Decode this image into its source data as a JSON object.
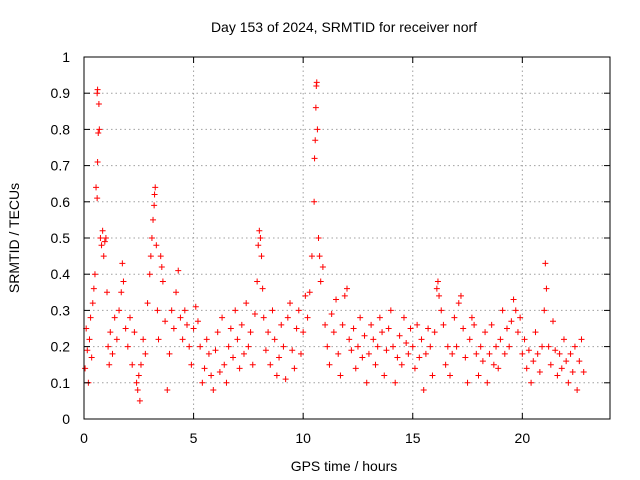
{
  "chart_data": {
    "type": "scatter",
    "title": "Day 153 of 2024, SRMTID for receiver norf",
    "xlabel": "GPS time / hours",
    "ylabel": "SRMTID / TECUs",
    "xlim": [
      0,
      24
    ],
    "ylim": [
      0,
      1
    ],
    "xticks": [
      0,
      5,
      10,
      15,
      20
    ],
    "xtick_labels": [
      "0",
      "5",
      "10",
      "15",
      "20"
    ],
    "yticks": [
      0,
      0.1,
      0.2,
      0.3,
      0.4,
      0.5,
      0.6,
      0.7,
      0.8,
      0.9,
      1
    ],
    "ytick_labels": [
      "0",
      "0.1",
      "0.2",
      "0.3",
      "0.4",
      "0.5",
      "0.6",
      "0.7",
      "0.8",
      "0.9",
      "1"
    ],
    "grid": true,
    "marker": "plus",
    "marker_color": "#ff0000",
    "x_data_range": [
      0,
      22.8
    ],
    "series": [
      {
        "name": "SRMTID",
        "points": [
          [
            0.05,
            0.14
          ],
          [
            0.1,
            0.25
          ],
          [
            0.15,
            0.19
          ],
          [
            0.2,
            0.1
          ],
          [
            0.25,
            0.22
          ],
          [
            0.3,
            0.28
          ],
          [
            0.35,
            0.17
          ],
          [
            0.4,
            0.32
          ],
          [
            0.45,
            0.36
          ],
          [
            0.5,
            0.4
          ],
          [
            0.55,
            0.64
          ],
          [
            0.6,
            0.61
          ],
          [
            0.62,
            0.71
          ],
          [
            0.65,
            0.79
          ],
          [
            0.68,
            0.87
          ],
          [
            0.6,
            0.9
          ],
          [
            0.62,
            0.91
          ],
          [
            0.7,
            0.8
          ],
          [
            0.75,
            0.5
          ],
          [
            0.8,
            0.48
          ],
          [
            0.85,
            0.52
          ],
          [
            0.9,
            0.45
          ],
          [
            0.95,
            0.49
          ],
          [
            1.0,
            0.5
          ],
          [
            1.05,
            0.35
          ],
          [
            1.1,
            0.2
          ],
          [
            1.15,
            0.15
          ],
          [
            1.2,
            0.24
          ],
          [
            1.3,
            0.18
          ],
          [
            1.4,
            0.28
          ],
          [
            1.5,
            0.22
          ],
          [
            1.6,
            0.3
          ],
          [
            1.7,
            0.35
          ],
          [
            1.75,
            0.43
          ],
          [
            1.8,
            0.38
          ],
          [
            1.9,
            0.25
          ],
          [
            2.0,
            0.2
          ],
          [
            2.1,
            0.28
          ],
          [
            2.2,
            0.15
          ],
          [
            2.3,
            0.24
          ],
          [
            2.4,
            0.1
          ],
          [
            2.45,
            0.08
          ],
          [
            2.5,
            0.12
          ],
          [
            2.55,
            0.05
          ],
          [
            2.6,
            0.15
          ],
          [
            2.7,
            0.22
          ],
          [
            2.8,
            0.18
          ],
          [
            2.9,
            0.32
          ],
          [
            3.0,
            0.4
          ],
          [
            3.05,
            0.45
          ],
          [
            3.1,
            0.5
          ],
          [
            3.15,
            0.55
          ],
          [
            3.2,
            0.59
          ],
          [
            3.22,
            0.62
          ],
          [
            3.25,
            0.64
          ],
          [
            3.3,
            0.48
          ],
          [
            3.35,
            0.3
          ],
          [
            3.4,
            0.22
          ],
          [
            3.5,
            0.45
          ],
          [
            3.55,
            0.42
          ],
          [
            3.6,
            0.38
          ],
          [
            3.7,
            0.27
          ],
          [
            3.8,
            0.08
          ],
          [
            3.9,
            0.18
          ],
          [
            4.0,
            0.3
          ],
          [
            4.1,
            0.25
          ],
          [
            4.2,
            0.35
          ],
          [
            4.3,
            0.41
          ],
          [
            4.4,
            0.28
          ],
          [
            4.5,
            0.22
          ],
          [
            4.6,
            0.3
          ],
          [
            4.7,
            0.26
          ],
          [
            4.8,
            0.2
          ],
          [
            4.9,
            0.15
          ],
          [
            5.0,
            0.25
          ],
          [
            5.1,
            0.31
          ],
          [
            5.2,
            0.27
          ],
          [
            5.3,
            0.2
          ],
          [
            5.4,
            0.1
          ],
          [
            5.5,
            0.14
          ],
          [
            5.6,
            0.22
          ],
          [
            5.7,
            0.18
          ],
          [
            5.8,
            0.12
          ],
          [
            5.9,
            0.08
          ],
          [
            6.0,
            0.19
          ],
          [
            6.1,
            0.24
          ],
          [
            6.2,
            0.13
          ],
          [
            6.3,
            0.28
          ],
          [
            6.4,
            0.15
          ],
          [
            6.5,
            0.1
          ],
          [
            6.6,
            0.2
          ],
          [
            6.7,
            0.25
          ],
          [
            6.8,
            0.17
          ],
          [
            6.9,
            0.3
          ],
          [
            7.0,
            0.22
          ],
          [
            7.1,
            0.14
          ],
          [
            7.2,
            0.26
          ],
          [
            7.3,
            0.18
          ],
          [
            7.4,
            0.32
          ],
          [
            7.5,
            0.2
          ],
          [
            7.6,
            0.24
          ],
          [
            7.7,
            0.15
          ],
          [
            7.8,
            0.29
          ],
          [
            7.9,
            0.38
          ],
          [
            7.95,
            0.48
          ],
          [
            8.0,
            0.52
          ],
          [
            8.05,
            0.5
          ],
          [
            8.1,
            0.45
          ],
          [
            8.15,
            0.36
          ],
          [
            8.2,
            0.28
          ],
          [
            8.3,
            0.19
          ],
          [
            8.4,
            0.24
          ],
          [
            8.5,
            0.15
          ],
          [
            8.6,
            0.3
          ],
          [
            8.7,
            0.22
          ],
          [
            8.8,
            0.12
          ],
          [
            8.9,
            0.17
          ],
          [
            9.0,
            0.26
          ],
          [
            9.1,
            0.2
          ],
          [
            9.2,
            0.11
          ],
          [
            9.3,
            0.28
          ],
          [
            9.4,
            0.32
          ],
          [
            9.5,
            0.19
          ],
          [
            9.6,
            0.14
          ],
          [
            9.7,
            0.25
          ],
          [
            9.8,
            0.3
          ],
          [
            9.9,
            0.18
          ],
          [
            10.0,
            0.24
          ],
          [
            10.1,
            0.34
          ],
          [
            10.2,
            0.28
          ],
          [
            10.3,
            0.35
          ],
          [
            10.4,
            0.45
          ],
          [
            10.5,
            0.6
          ],
          [
            10.52,
            0.72
          ],
          [
            10.55,
            0.77
          ],
          [
            10.58,
            0.86
          ],
          [
            10.6,
            0.92
          ],
          [
            10.62,
            0.93
          ],
          [
            10.65,
            0.8
          ],
          [
            10.7,
            0.5
          ],
          [
            10.75,
            0.45
          ],
          [
            10.8,
            0.38
          ],
          [
            10.9,
            0.42
          ],
          [
            11.0,
            0.26
          ],
          [
            11.1,
            0.2
          ],
          [
            11.2,
            0.15
          ],
          [
            11.3,
            0.29
          ],
          [
            11.4,
            0.24
          ],
          [
            11.5,
            0.33
          ],
          [
            11.6,
            0.18
          ],
          [
            11.7,
            0.12
          ],
          [
            11.8,
            0.26
          ],
          [
            11.9,
            0.34
          ],
          [
            12.0,
            0.36
          ],
          [
            12.1,
            0.22
          ],
          [
            12.2,
            0.19
          ],
          [
            12.3,
            0.25
          ],
          [
            12.4,
            0.14
          ],
          [
            12.5,
            0.2
          ],
          [
            12.6,
            0.28
          ],
          [
            12.7,
            0.17
          ],
          [
            12.8,
            0.23
          ],
          [
            12.9,
            0.1
          ],
          [
            13.0,
            0.18
          ],
          [
            13.1,
            0.26
          ],
          [
            13.2,
            0.22
          ],
          [
            13.3,
            0.15
          ],
          [
            13.4,
            0.2
          ],
          [
            13.5,
            0.28
          ],
          [
            13.6,
            0.24
          ],
          [
            13.7,
            0.12
          ],
          [
            13.8,
            0.19
          ],
          [
            13.9,
            0.25
          ],
          [
            14.0,
            0.3
          ],
          [
            14.1,
            0.2
          ],
          [
            14.2,
            0.1
          ],
          [
            14.3,
            0.17
          ],
          [
            14.4,
            0.23
          ],
          [
            14.5,
            0.15
          ],
          [
            14.6,
            0.28
          ],
          [
            14.7,
            0.21
          ],
          [
            14.8,
            0.18
          ],
          [
            14.9,
            0.25
          ],
          [
            15.0,
            0.2
          ],
          [
            15.1,
            0.14
          ],
          [
            15.2,
            0.26
          ],
          [
            15.3,
            0.17
          ],
          [
            15.4,
            0.22
          ],
          [
            15.5,
            0.08
          ],
          [
            15.6,
            0.18
          ],
          [
            15.7,
            0.25
          ],
          [
            15.8,
            0.2
          ],
          [
            15.9,
            0.12
          ],
          [
            16.0,
            0.24
          ],
          [
            16.1,
            0.36
          ],
          [
            16.15,
            0.38
          ],
          [
            16.2,
            0.34
          ],
          [
            16.3,
            0.3
          ],
          [
            16.4,
            0.26
          ],
          [
            16.5,
            0.15
          ],
          [
            16.6,
            0.2
          ],
          [
            16.7,
            0.12
          ],
          [
            16.8,
            0.18
          ],
          [
            16.9,
            0.28
          ],
          [
            17.0,
            0.2
          ],
          [
            17.1,
            0.32
          ],
          [
            17.2,
            0.34
          ],
          [
            17.3,
            0.25
          ],
          [
            17.4,
            0.17
          ],
          [
            17.5,
            0.1
          ],
          [
            17.6,
            0.22
          ],
          [
            17.7,
            0.28
          ],
          [
            17.8,
            0.26
          ],
          [
            17.9,
            0.18
          ],
          [
            18.0,
            0.12
          ],
          [
            18.1,
            0.2
          ],
          [
            18.2,
            0.16
          ],
          [
            18.3,
            0.24
          ],
          [
            18.4,
            0.1
          ],
          [
            18.5,
            0.18
          ],
          [
            18.6,
            0.26
          ],
          [
            18.7,
            0.15
          ],
          [
            18.8,
            0.2
          ],
          [
            18.9,
            0.14
          ],
          [
            19.0,
            0.22
          ],
          [
            19.1,
            0.3
          ],
          [
            19.2,
            0.18
          ],
          [
            19.3,
            0.25
          ],
          [
            19.4,
            0.2
          ],
          [
            19.5,
            0.27
          ],
          [
            19.6,
            0.33
          ],
          [
            19.7,
            0.3
          ],
          [
            19.8,
            0.24
          ],
          [
            19.9,
            0.28
          ],
          [
            20.0,
            0.18
          ],
          [
            20.1,
            0.22
          ],
          [
            20.2,
            0.14
          ],
          [
            20.3,
            0.19
          ],
          [
            20.4,
            0.1
          ],
          [
            20.5,
            0.16
          ],
          [
            20.6,
            0.24
          ],
          [
            20.7,
            0.18
          ],
          [
            20.8,
            0.13
          ],
          [
            20.9,
            0.2
          ],
          [
            21.0,
            0.3
          ],
          [
            21.05,
            0.43
          ],
          [
            21.1,
            0.36
          ],
          [
            21.2,
            0.2
          ],
          [
            21.3,
            0.15
          ],
          [
            21.4,
            0.27
          ],
          [
            21.5,
            0.19
          ],
          [
            21.6,
            0.12
          ],
          [
            21.7,
            0.18
          ],
          [
            21.8,
            0.14
          ],
          [
            21.9,
            0.22
          ],
          [
            22.0,
            0.16
          ],
          [
            22.1,
            0.1
          ],
          [
            22.2,
            0.18
          ],
          [
            22.3,
            0.13
          ],
          [
            22.4,
            0.2
          ],
          [
            22.5,
            0.08
          ],
          [
            22.6,
            0.16
          ],
          [
            22.7,
            0.22
          ],
          [
            22.8,
            0.13
          ]
        ]
      }
    ]
  }
}
